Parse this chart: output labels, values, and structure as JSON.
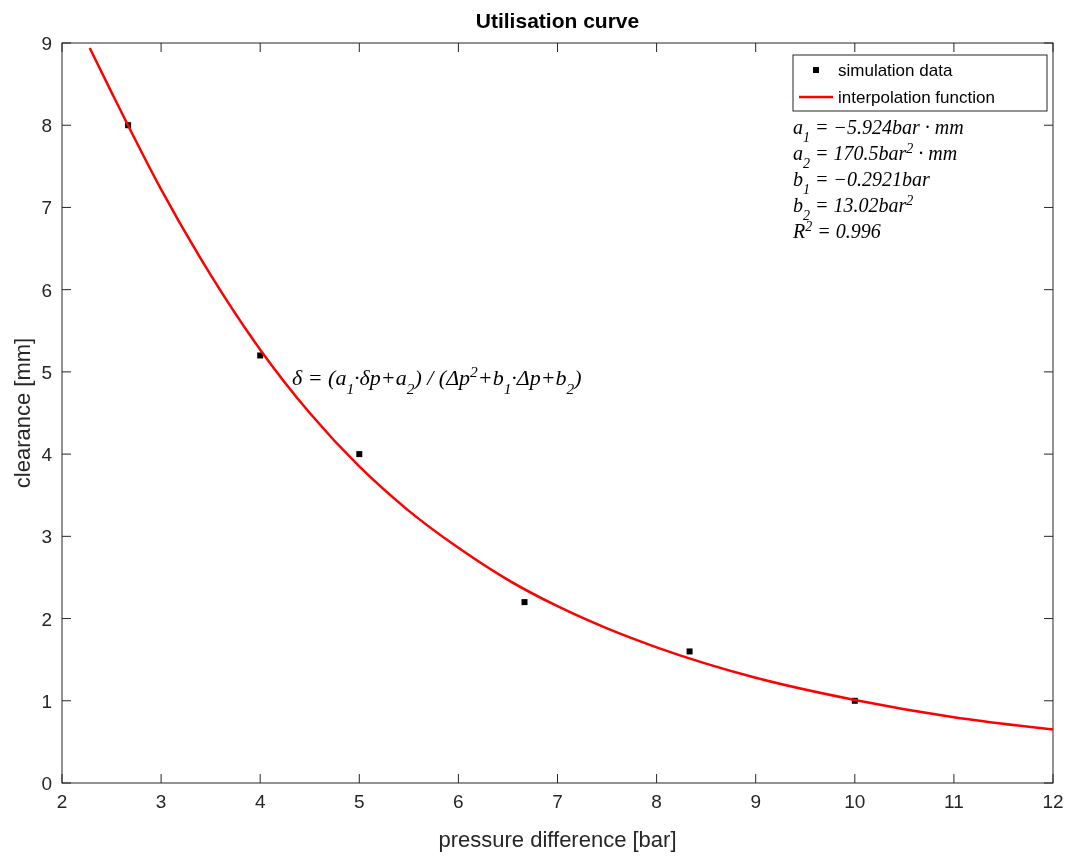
{
  "chart_data": {
    "type": "scatter",
    "title": "Utilisation curve",
    "xlabel": "pressure difference [bar]",
    "ylabel": "clearance [mm]",
    "xlim": [
      2,
      12
    ],
    "xticks": [
      2,
      3,
      4,
      5,
      6,
      7,
      8,
      9,
      10,
      11,
      12
    ],
    "ylim": [
      0,
      9
    ],
    "yticks": [
      0,
      1,
      2,
      3,
      4,
      5,
      6,
      7,
      8,
      9
    ],
    "grid": false,
    "legend": "top right",
    "series": [
      {
        "name": "simulation data",
        "marker": "square",
        "color": "#000000",
        "x": [
          2.667,
          4,
          5,
          6.667,
          8.333,
          10
        ],
        "values": [
          8.0,
          5.2,
          4.0,
          2.2,
          1.6,
          1.0
        ]
      },
      {
        "name": "interpolation function",
        "type": "line",
        "color": "#ff0000",
        "x": [
          2.28,
          2.5,
          3,
          3.5,
          4,
          4.5,
          5,
          5.5,
          6,
          6.5,
          7,
          7.5,
          8,
          9,
          10,
          11,
          12
        ],
        "values": [
          8.94,
          8.4,
          7.22,
          6.18,
          5.27,
          4.5,
          3.85,
          3.31,
          2.86,
          2.47,
          2.15,
          1.88,
          1.65,
          1.28,
          1.01,
          0.8,
          0.65
        ]
      }
    ],
    "annotations": [
      "a$_{1}$ = −5.924bar · mm",
      "a$_{2}$ = 170.5bar$^{2}$ · mm",
      "b$_{1}$ = −0.2921bar",
      "b$_{2}$ = 13.02bar$^{2}$",
      "R$^{2}$ = 0.996",
      "δ = (a$_{1}$·δp+a$_{2}$) / (Δp$^{2}$+b$_{1}$·Δp+b$_{2}$)"
    ]
  }
}
